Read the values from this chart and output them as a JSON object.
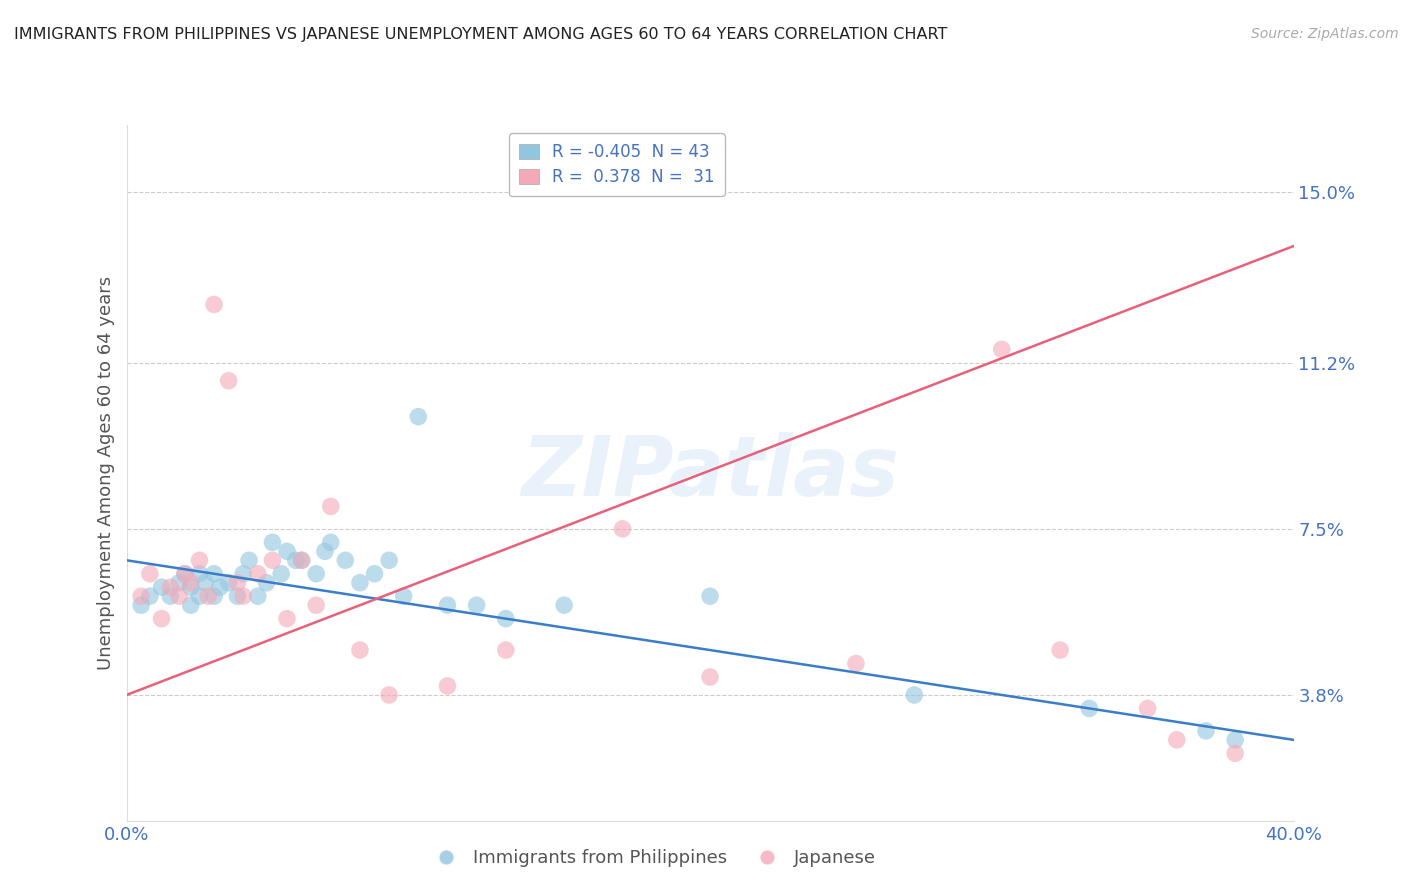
{
  "title": "IMMIGRANTS FROM PHILIPPINES VS JAPANESE UNEMPLOYMENT AMONG AGES 60 TO 64 YEARS CORRELATION CHART",
  "source": "Source: ZipAtlas.com",
  "ylabel": "Unemployment Among Ages 60 to 64 years",
  "xlim": [
    0.0,
    0.4
  ],
  "ylim": [
    0.01,
    0.165
  ],
  "yticks": [
    0.038,
    0.075,
    0.112,
    0.15
  ],
  "ytick_labels": [
    "3.8%",
    "7.5%",
    "11.2%",
    "15.0%"
  ],
  "xticks": [
    0.0,
    0.1,
    0.2,
    0.3,
    0.4
  ],
  "xtick_labels": [
    "0.0%",
    "",
    "",
    "",
    "40.0%"
  ],
  "legend1_label": "R = -0.405  N = 43",
  "legend2_label": "R =  0.378  N =  31",
  "blue_color": "#92c5de",
  "pink_color": "#f4a9b8",
  "blue_line_color": "#3a7dc9",
  "pink_line_color": "#e8607a",
  "tick_color": "#4472c4",
  "axis_label_color": "#555555",
  "watermark_text": "ZIPatlas",
  "blue_scatter_x": [
    0.005,
    0.008,
    0.012,
    0.015,
    0.018,
    0.02,
    0.022,
    0.022,
    0.025,
    0.025,
    0.027,
    0.03,
    0.03,
    0.032,
    0.035,
    0.038,
    0.04,
    0.042,
    0.045,
    0.048,
    0.05,
    0.053,
    0.055,
    0.058,
    0.06,
    0.065,
    0.068,
    0.07,
    0.075,
    0.08,
    0.085,
    0.09,
    0.095,
    0.1,
    0.11,
    0.12,
    0.13,
    0.15,
    0.2,
    0.27,
    0.33,
    0.37,
    0.38
  ],
  "blue_scatter_y": [
    0.058,
    0.06,
    0.062,
    0.06,
    0.063,
    0.065,
    0.058,
    0.062,
    0.06,
    0.065,
    0.063,
    0.06,
    0.065,
    0.062,
    0.063,
    0.06,
    0.065,
    0.068,
    0.06,
    0.063,
    0.072,
    0.065,
    0.07,
    0.068,
    0.068,
    0.065,
    0.07,
    0.072,
    0.068,
    0.063,
    0.065,
    0.068,
    0.06,
    0.1,
    0.058,
    0.058,
    0.055,
    0.058,
    0.06,
    0.038,
    0.035,
    0.03,
    0.028
  ],
  "pink_scatter_x": [
    0.005,
    0.008,
    0.012,
    0.015,
    0.018,
    0.02,
    0.022,
    0.025,
    0.028,
    0.03,
    0.035,
    0.038,
    0.04,
    0.045,
    0.05,
    0.055,
    0.06,
    0.065,
    0.07,
    0.08,
    0.09,
    0.11,
    0.13,
    0.17,
    0.2,
    0.25,
    0.3,
    0.32,
    0.35,
    0.36,
    0.38
  ],
  "pink_scatter_y": [
    0.06,
    0.065,
    0.055,
    0.062,
    0.06,
    0.065,
    0.063,
    0.068,
    0.06,
    0.125,
    0.108,
    0.063,
    0.06,
    0.065,
    0.068,
    0.055,
    0.068,
    0.058,
    0.08,
    0.048,
    0.038,
    0.04,
    0.048,
    0.075,
    0.042,
    0.045,
    0.115,
    0.048,
    0.035,
    0.028,
    0.025
  ],
  "blue_trend_x": [
    0.0,
    0.4
  ],
  "blue_trend_y": [
    0.068,
    0.028
  ],
  "pink_trend_x": [
    0.0,
    0.4
  ],
  "pink_trend_y": [
    0.038,
    0.138
  ]
}
